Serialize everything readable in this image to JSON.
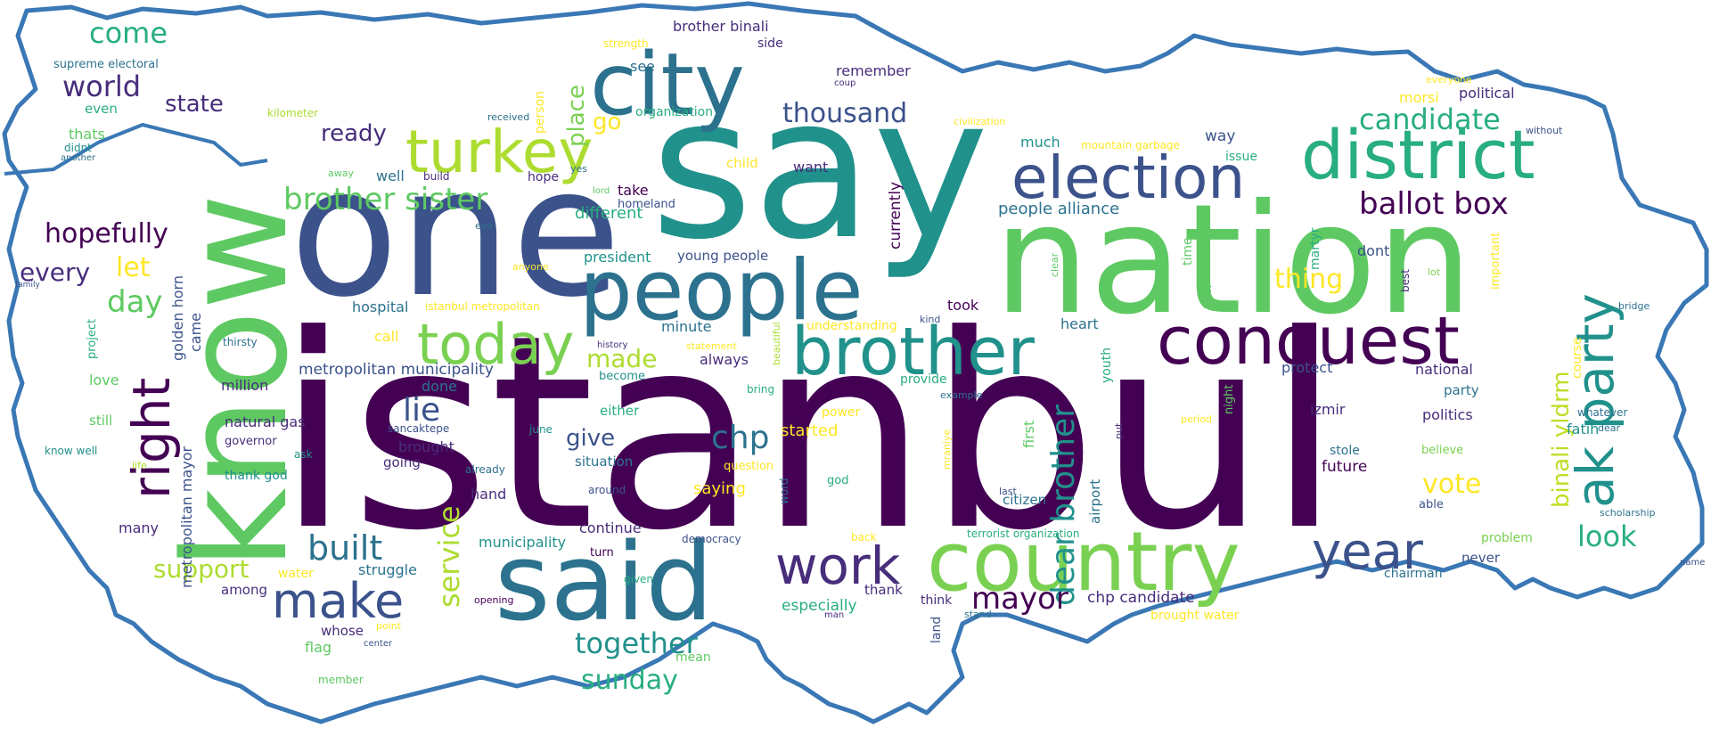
{
  "colors": {
    "background": "#ffffff",
    "outline": "#3a78b5",
    "palette": [
      "#440154",
      "#472d7b",
      "#3b528b",
      "#2c728e",
      "#21918c",
      "#28ae80",
      "#5ec962",
      "#addc30",
      "#fde725"
    ]
  },
  "words": [
    {
      "text": "istanbul",
      "color": "#440154"
    },
    {
      "text": "say",
      "color": "#21918c"
    },
    {
      "text": "one",
      "color": "#3b528b"
    },
    {
      "text": "nation",
      "color": "#5ec962"
    },
    {
      "text": "know",
      "color": "#5ec962"
    },
    {
      "text": "said",
      "color": "#2c728e"
    },
    {
      "text": "people",
      "color": "#2c728e"
    },
    {
      "text": "country",
      "color": "#7ad151"
    },
    {
      "text": "city",
      "color": "#2c728e"
    },
    {
      "text": "election",
      "color": "#3b528b"
    },
    {
      "text": "district",
      "color": "#28ae80"
    },
    {
      "text": "conquest",
      "color": "#440154"
    },
    {
      "text": "brother",
      "color": "#21918c"
    },
    {
      "text": "turkey",
      "color": "#addc30"
    },
    {
      "text": "today",
      "color": "#7ad151"
    },
    {
      "text": "ak party",
      "color": "#21918c"
    },
    {
      "text": "right",
      "color": "#440154"
    },
    {
      "text": "work",
      "color": "#472d7b"
    },
    {
      "text": "make",
      "color": "#3b528b"
    },
    {
      "text": "year",
      "color": "#3b528b"
    },
    {
      "text": "brother sister",
      "color": "#5ec962"
    },
    {
      "text": "ballot box",
      "color": "#440154"
    },
    {
      "text": "dear brother",
      "color": "#21918c"
    },
    {
      "text": "candidate",
      "color": "#28ae80"
    },
    {
      "text": "service",
      "color": "#addc30"
    },
    {
      "text": "mayor",
      "color": "#440154"
    },
    {
      "text": "built",
      "color": "#2c728e"
    },
    {
      "text": "together",
      "color": "#21918c"
    },
    {
      "text": "look",
      "color": "#28ae80"
    },
    {
      "text": "binali yldrm",
      "color": "#bddf26"
    },
    {
      "text": "thousand",
      "color": "#3b528b"
    },
    {
      "text": "chp",
      "color": "#2c728e"
    },
    {
      "text": "come",
      "color": "#28ae80"
    },
    {
      "text": "world",
      "color": "#472d7b"
    },
    {
      "text": "hopefully",
      "color": "#440154"
    },
    {
      "text": "every",
      "color": "#472d7b"
    },
    {
      "text": "day",
      "color": "#5ec962"
    },
    {
      "text": "let",
      "color": "#fde725"
    },
    {
      "text": "support",
      "color": "#addc30"
    },
    {
      "text": "sunday",
      "color": "#28ae80"
    },
    {
      "text": "made",
      "color": "#addc30"
    },
    {
      "text": "lie",
      "color": "#3b528b"
    },
    {
      "text": "vote",
      "color": "#fde725"
    },
    {
      "text": "thing",
      "color": "#fde725"
    },
    {
      "text": "place",
      "color": "#7ad151"
    },
    {
      "text": "state",
      "color": "#472d7b"
    },
    {
      "text": "give",
      "color": "#3b528b"
    },
    {
      "text": "ready",
      "color": "#472d7b"
    },
    {
      "text": "go",
      "color": "#fde725"
    },
    {
      "text": "different",
      "color": "#28ae80"
    },
    {
      "text": "currently",
      "color": "#440154"
    },
    {
      "text": "people alliance",
      "color": "#2c728e"
    },
    {
      "text": "metropolitan municipality",
      "color": "#3b528b"
    },
    {
      "text": "metropolitan mayor",
      "color": "#3b528b"
    },
    {
      "text": "golden horn",
      "color": "#3b528b"
    },
    {
      "text": "came",
      "color": "#3b528b"
    },
    {
      "text": "started",
      "color": "#fde725"
    },
    {
      "text": "chp candidate",
      "color": "#472d7b"
    },
    {
      "text": "president",
      "color": "#21918c"
    },
    {
      "text": "young people",
      "color": "#3b528b"
    },
    {
      "text": "hospital",
      "color": "#2c728e"
    },
    {
      "text": "istanbul metropolitan",
      "color": "#fde725"
    },
    {
      "text": "minute",
      "color": "#2c728e"
    },
    {
      "text": "always",
      "color": "#472d7b"
    },
    {
      "text": "took",
      "color": "#440154"
    },
    {
      "text": "heart",
      "color": "#2c728e"
    },
    {
      "text": "protect",
      "color": "#3b528b"
    },
    {
      "text": "national",
      "color": "#472d7b"
    },
    {
      "text": "party",
      "color": "#2c728e"
    },
    {
      "text": "politics",
      "color": "#472d7b"
    },
    {
      "text": "fatih",
      "color": "#21918c"
    },
    {
      "text": "izmir",
      "color": "#472d7b"
    },
    {
      "text": "future",
      "color": "#440154"
    },
    {
      "text": "stole",
      "color": "#2c728e"
    },
    {
      "text": "believe",
      "color": "#7ad151"
    },
    {
      "text": "able",
      "color": "#3b528b"
    },
    {
      "text": "never",
      "color": "#3b528b"
    },
    {
      "text": "chairman",
      "color": "#2c728e"
    },
    {
      "text": "problem",
      "color": "#7ad151"
    },
    {
      "text": "scholarship",
      "color": "#2c728e"
    },
    {
      "text": "whatever",
      "color": "#2c728e"
    },
    {
      "text": "dear",
      "color": "#2c728e"
    },
    {
      "text": "bridge",
      "color": "#2c728e"
    },
    {
      "text": "course",
      "color": "#fde725"
    },
    {
      "text": "important",
      "color": "#fde725"
    },
    {
      "text": "lot",
      "color": "#7ad151"
    },
    {
      "text": "best",
      "color": "#472d7b"
    },
    {
      "text": "dont",
      "color": "#3b528b"
    },
    {
      "text": "martyr",
      "color": "#28ae80"
    },
    {
      "text": "night",
      "color": "#5ec962"
    },
    {
      "text": "clear",
      "color": "#5ec962"
    },
    {
      "text": "time",
      "color": "#5ec962"
    },
    {
      "text": "new",
      "color": "#5ec962"
    },
    {
      "text": "political",
      "color": "#472d7b"
    },
    {
      "text": "morsi",
      "color": "#fde725"
    },
    {
      "text": "everyone",
      "color": "#fde725"
    },
    {
      "text": "without",
      "color": "#3b528b"
    },
    {
      "text": "issue",
      "color": "#28ae80"
    },
    {
      "text": "way",
      "color": "#3b528b"
    },
    {
      "text": "much",
      "color": "#21918c"
    },
    {
      "text": "mountain garbage",
      "color": "#fde725"
    },
    {
      "text": "civilization",
      "color": "#fde725"
    },
    {
      "text": "want",
      "color": "#472d7b"
    },
    {
      "text": "child",
      "color": "#fde725"
    },
    {
      "text": "remember",
      "color": "#472d7b"
    },
    {
      "text": "coup",
      "color": "#472d7b"
    },
    {
      "text": "see",
      "color": "#2c728e"
    },
    {
      "text": "side",
      "color": "#472d7b"
    },
    {
      "text": "brother binali",
      "color": "#472d7b"
    },
    {
      "text": "strength",
      "color": "#fde725"
    },
    {
      "text": "organization",
      "color": "#28ae80"
    },
    {
      "text": "person",
      "color": "#fde725"
    },
    {
      "text": "received",
      "color": "#2c728e"
    },
    {
      "text": "supreme electoral",
      "color": "#2c728e"
    },
    {
      "text": "even",
      "color": "#28ae80"
    },
    {
      "text": "kilometer",
      "color": "#addc30"
    },
    {
      "text": "thats",
      "color": "#5ec962"
    },
    {
      "text": "didnt",
      "color": "#21918c"
    },
    {
      "text": "another",
      "color": "#2c728e"
    },
    {
      "text": "away",
      "color": "#5ec962"
    },
    {
      "text": "well",
      "color": "#2c728e"
    },
    {
      "text": "build",
      "color": "#472d7b"
    },
    {
      "text": "hope",
      "color": "#472d7b"
    },
    {
      "text": "lord",
      "color": "#5ec962"
    },
    {
      "text": "take",
      "color": "#440154"
    },
    {
      "text": "yes",
      "color": "#2c728e"
    },
    {
      "text": "homeland",
      "color": "#3b528b"
    },
    {
      "text": "eye",
      "color": "#2c728e"
    },
    {
      "text": "anyone",
      "color": "#fde725"
    },
    {
      "text": "family",
      "color": "#3b528b"
    },
    {
      "text": "project",
      "color": "#28ae80"
    },
    {
      "text": "love",
      "color": "#5ec962"
    },
    {
      "text": "still",
      "color": "#5ec962"
    },
    {
      "text": "know well",
      "color": "#21918c"
    },
    {
      "text": "life",
      "color": "#addc30"
    },
    {
      "text": "many",
      "color": "#472d7b"
    },
    {
      "text": "call",
      "color": "#fde725"
    },
    {
      "text": "thirsty",
      "color": "#2c728e"
    },
    {
      "text": "million",
      "color": "#472d7b"
    },
    {
      "text": "natural gas",
      "color": "#472d7b"
    },
    {
      "text": "governor",
      "color": "#472d7b"
    },
    {
      "text": "ask",
      "color": "#21918c"
    },
    {
      "text": "thank god",
      "color": "#21918c"
    },
    {
      "text": "done",
      "color": "#2c728e"
    },
    {
      "text": "sancaktepe",
      "color": "#3b528b"
    },
    {
      "text": "brought",
      "color": "#472d7b"
    },
    {
      "text": "going",
      "color": "#472d7b"
    },
    {
      "text": "already",
      "color": "#2c728e"
    },
    {
      "text": "hand",
      "color": "#472d7b"
    },
    {
      "text": "june",
      "color": "#21918c"
    },
    {
      "text": "either",
      "color": "#28ae80"
    },
    {
      "text": "situation",
      "color": "#2c728e"
    },
    {
      "text": "around",
      "color": "#3b528b"
    },
    {
      "text": "history",
      "color": "#472d7b"
    },
    {
      "text": "become",
      "color": "#21918c"
    },
    {
      "text": "statement",
      "color": "#fde725"
    },
    {
      "text": "beautiful",
      "color": "#addc30"
    },
    {
      "text": "bring",
      "color": "#28ae80"
    },
    {
      "text": "understanding",
      "color": "#fde725"
    },
    {
      "text": "kind",
      "color": "#3b528b"
    },
    {
      "text": "provide",
      "color": "#28ae80"
    },
    {
      "text": "example",
      "color": "#2c728e"
    },
    {
      "text": "power",
      "color": "#fde725"
    },
    {
      "text": "question",
      "color": "#fde725"
    },
    {
      "text": "god",
      "color": "#28ae80"
    },
    {
      "text": "word",
      "color": "#2c728e"
    },
    {
      "text": "saying",
      "color": "#fde725"
    },
    {
      "text": "mraniye",
      "color": "#fde725"
    },
    {
      "text": "first",
      "color": "#5ec962"
    },
    {
      "text": "youth",
      "color": "#28ae80"
    },
    {
      "text": "put",
      "color": "#472d7b"
    },
    {
      "text": "period",
      "color": "#fde725"
    },
    {
      "text": "airport",
      "color": "#2c728e"
    },
    {
      "text": "citizen",
      "color": "#2c728e"
    },
    {
      "text": "last",
      "color": "#3b528b"
    },
    {
      "text": "terrorist organization",
      "color": "#28ae80"
    },
    {
      "text": "back",
      "color": "#fde725"
    },
    {
      "text": "continue",
      "color": "#472d7b"
    },
    {
      "text": "municipality",
      "color": "#21918c"
    },
    {
      "text": "democracy",
      "color": "#3b528b"
    },
    {
      "text": "turn",
      "color": "#440154"
    },
    {
      "text": "given",
      "color": "#28ae80"
    },
    {
      "text": "especially",
      "color": "#28ae80"
    },
    {
      "text": "thank",
      "color": "#472d7b"
    },
    {
      "text": "think",
      "color": "#472d7b"
    },
    {
      "text": "land",
      "color": "#3b528b"
    },
    {
      "text": "stand",
      "color": "#2c728e"
    },
    {
      "text": "man",
      "color": "#472d7b"
    },
    {
      "text": "mean",
      "color": "#5ec962"
    },
    {
      "text": "brought water",
      "color": "#fde725"
    },
    {
      "text": "water",
      "color": "#fde725"
    },
    {
      "text": "struggle",
      "color": "#2c728e"
    },
    {
      "text": "among",
      "color": "#472d7b"
    },
    {
      "text": "whose",
      "color": "#472d7b"
    },
    {
      "text": "flag",
      "color": "#5ec962"
    },
    {
      "text": "point",
      "color": "#fde725"
    },
    {
      "text": "center",
      "color": "#3b528b"
    },
    {
      "text": "opening",
      "color": "#440154"
    },
    {
      "text": "member",
      "color": "#5ec962"
    },
    {
      "text": "name",
      "color": "#3b528b"
    }
  ]
}
